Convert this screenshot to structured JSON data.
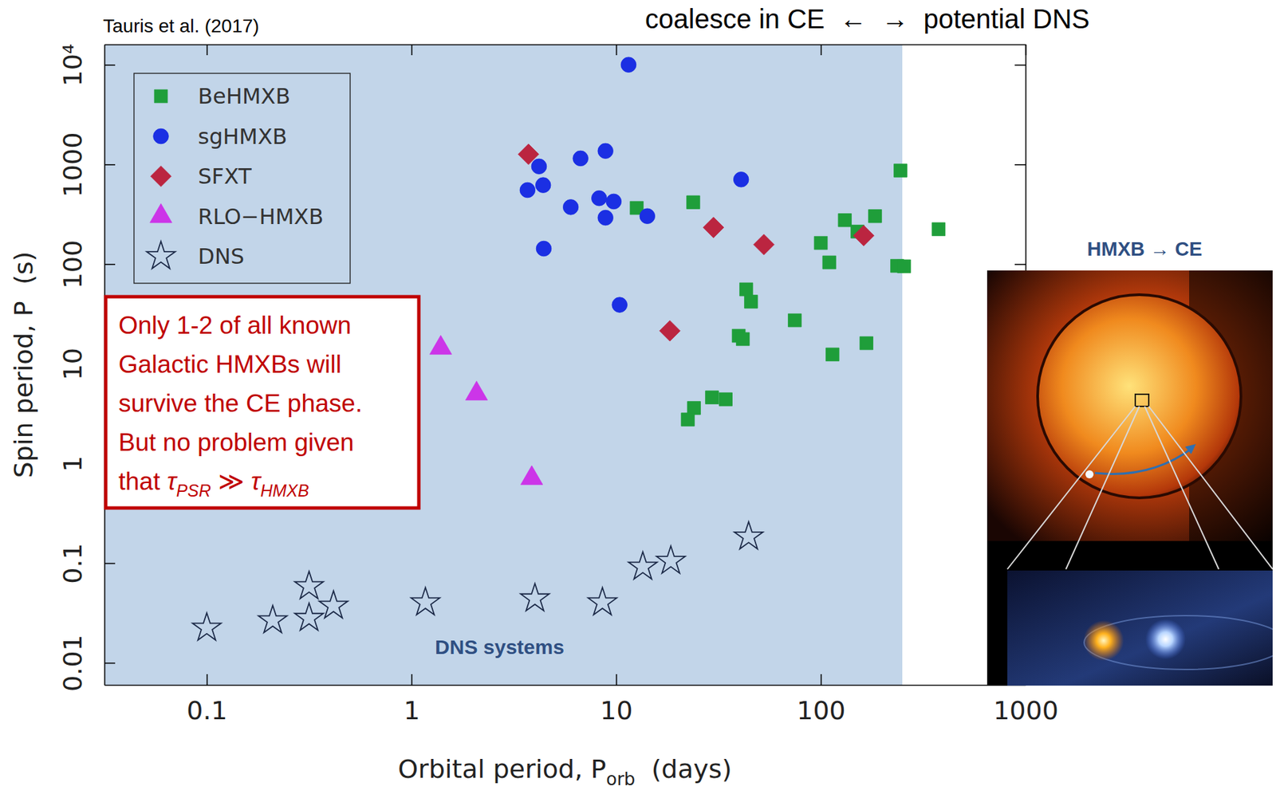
{
  "chart_data": {
    "type": "scatter",
    "title": "Tauris et al. (2017)",
    "xlabel": [
      {
        "text": "Orbital period, P",
        "subscript": "orb"
      },
      {
        "text": "  (days)"
      }
    ],
    "ylabel": "Spin period, P  (s)",
    "log": true,
    "xlim": [
      0.0316,
      1000
    ],
    "ylim": [
      0.006,
      16000
    ],
    "xticks": [
      0.1,
      1,
      10,
      100,
      1000
    ],
    "yticks": [
      0.01,
      0.1,
      1,
      10,
      100,
      1000,
      {
        "value": 10000,
        "label": "10⁴"
      }
    ],
    "legend": "upper left",
    "series": [
      {
        "name": "BeHMXB",
        "color": "#1f9e3a",
        "marker": "square",
        "x": [
          12.6,
          23.8,
          245,
          376,
          131,
          184,
          100,
          110,
          151,
          236,
          255,
          43.2,
          45.6,
          74.6,
          39.7,
          41.6,
          114,
          167,
          29.4,
          34.3,
          24.0,
          22.4
        ],
        "values": [
          366,
          417,
          868,
          224,
          276,
          303,
          163,
          104,
          212,
          96,
          95,
          55.8,
          42,
          27.3,
          19.1,
          17.7,
          12.4,
          16.1,
          4.6,
          4.4,
          3.6,
          2.76
        ]
      },
      {
        "name": "sgHMXB",
        "color": "#1b2fe3",
        "marker": "circle",
        "x": [
          11.5,
          4.2,
          3.69,
          4.4,
          6.7,
          8.87,
          8.26,
          9.73,
          6.0,
          8.87,
          14.2,
          40.8,
          4.43,
          10.4
        ],
        "values": [
          10000,
          955,
          553,
          620,
          1150,
          1365,
          458,
          425,
          373,
          292,
          303,
          706,
          143,
          39
        ]
      },
      {
        "name": "SFXT",
        "color": "#bb2540",
        "marker": "diamond",
        "x": [
          3.73,
          29.9,
          52.7,
          162,
          18.3
        ],
        "values": [
          1265,
          233,
          157,
          193,
          21.4
        ]
      },
      {
        "name": "RLO−HMXB",
        "color": "#cc35e8",
        "marker": "triangle",
        "x": [
          1.39,
          2.08,
          3.87
        ],
        "values": [
          14.4,
          5.0,
          0.71
        ]
      },
      {
        "name": "DNS",
        "color": "#1c2a48",
        "marker": "star-open",
        "x": [
          0.1,
          0.21,
          0.316,
          0.316,
          0.416,
          1.17,
          4.01,
          8.57,
          13.5,
          18.5,
          44.4
        ],
        "values": [
          0.0224,
          0.0266,
          0.0585,
          0.0281,
          0.0373,
          0.0402,
          0.0441,
          0.0402,
          0.0918,
          0.105,
          0.184
        ]
      }
    ],
    "regions": [
      {
        "xlim": [
          0.0316,
          250
        ],
        "color": "#c2d5e9"
      }
    ],
    "annotations": [
      {
        "text": "coalesce in CE  ←  →  potential DNS",
        "color": "#000000"
      },
      {
        "text": "DNS systems",
        "color": "#2f4f82"
      },
      {
        "lines": [
          "Only 1-2 of all known",
          "Galactic HMXBs will",
          "survive the CE phase.",
          "But no problem given",
          [
            {
              "text": "that "
            },
            {
              "text": "τ",
              "subscript": "PSR"
            },
            {
              "text": " ≫ "
            },
            {
              "text": "τ",
              "subscript": "HMXB"
            }
          ]
        ],
        "color": "#c00000"
      },
      {
        "text": "HMXB → CE",
        "color": "#2f4f82"
      }
    ]
  }
}
